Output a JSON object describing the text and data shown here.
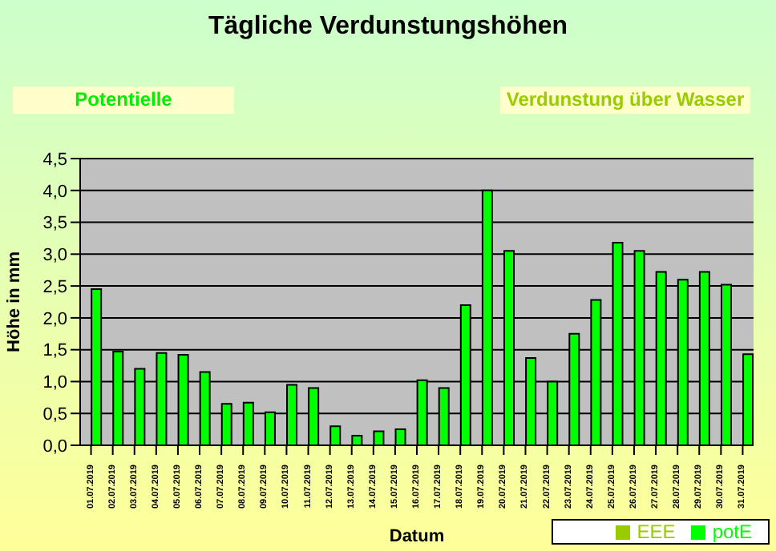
{
  "chart_data": {
    "type": "bar",
    "title": "Tägliche Verdunstungshöhen",
    "annotations": [
      "Potentielle",
      "Verdunstung über Wasser"
    ],
    "xlabel": "Datum",
    "ylabel": "Höhe in mm",
    "categories": [
      "01.07.2019",
      "02.07.2019",
      "03.07.2019",
      "04.07.2019",
      "05.07.2019",
      "06.07.2019",
      "07.07.2019",
      "08.07.2019",
      "09.07.2019",
      "10.07.2019",
      "11.07.2019",
      "12.07.2019",
      "13.07.2019",
      "14.07.2019",
      "15.07.2019",
      "16.07.2019",
      "17.07.2019",
      "18.07.2019",
      "19.07.2019",
      "20.07.2019",
      "21.07.2019",
      "22.07.2019",
      "23.07.2019",
      "24.07.2019",
      "25.07.2019",
      "26.07.2019",
      "27.07.2019",
      "28.07.2019",
      "29.07.2019",
      "30.07.2019",
      "31.07.2019"
    ],
    "series": [
      {
        "name": "EEE",
        "color": "#99cc00",
        "values": [
          null,
          null,
          null,
          null,
          null,
          null,
          null,
          null,
          null,
          null,
          null,
          null,
          null,
          null,
          null,
          null,
          null,
          null,
          null,
          null,
          null,
          null,
          null,
          null,
          null,
          null,
          null,
          null,
          null,
          null,
          null
        ]
      },
      {
        "name": "potE",
        "color": "#00ff00",
        "values": [
          2.45,
          1.47,
          1.2,
          1.45,
          1.42,
          1.15,
          0.65,
          0.67,
          0.52,
          0.95,
          0.9,
          0.3,
          0.15,
          0.22,
          0.25,
          1.02,
          0.9,
          2.2,
          4.0,
          3.05,
          1.37,
          1.0,
          1.75,
          2.28,
          3.18,
          3.05,
          2.72,
          2.6,
          2.72,
          2.52,
          1.43
        ]
      }
    ],
    "ylim": [
      0,
      4.5
    ],
    "yticks": [
      {
        "value": 0,
        "label": "0,0"
      },
      {
        "value": 0.5,
        "label": "0,5"
      },
      {
        "value": 1,
        "label": "1,0"
      },
      {
        "value": 1.5,
        "label": "1,5"
      },
      {
        "value": 2,
        "label": "2,0"
      },
      {
        "value": 2.5,
        "label": "2,5"
      },
      {
        "value": 3,
        "label": "3,0"
      },
      {
        "value": 3.5,
        "label": "3,5"
      },
      {
        "value": 4,
        "label": "4,0"
      },
      {
        "value": 4.5,
        "label": "4,5"
      }
    ],
    "grid": "y",
    "legend": "bottom right"
  }
}
